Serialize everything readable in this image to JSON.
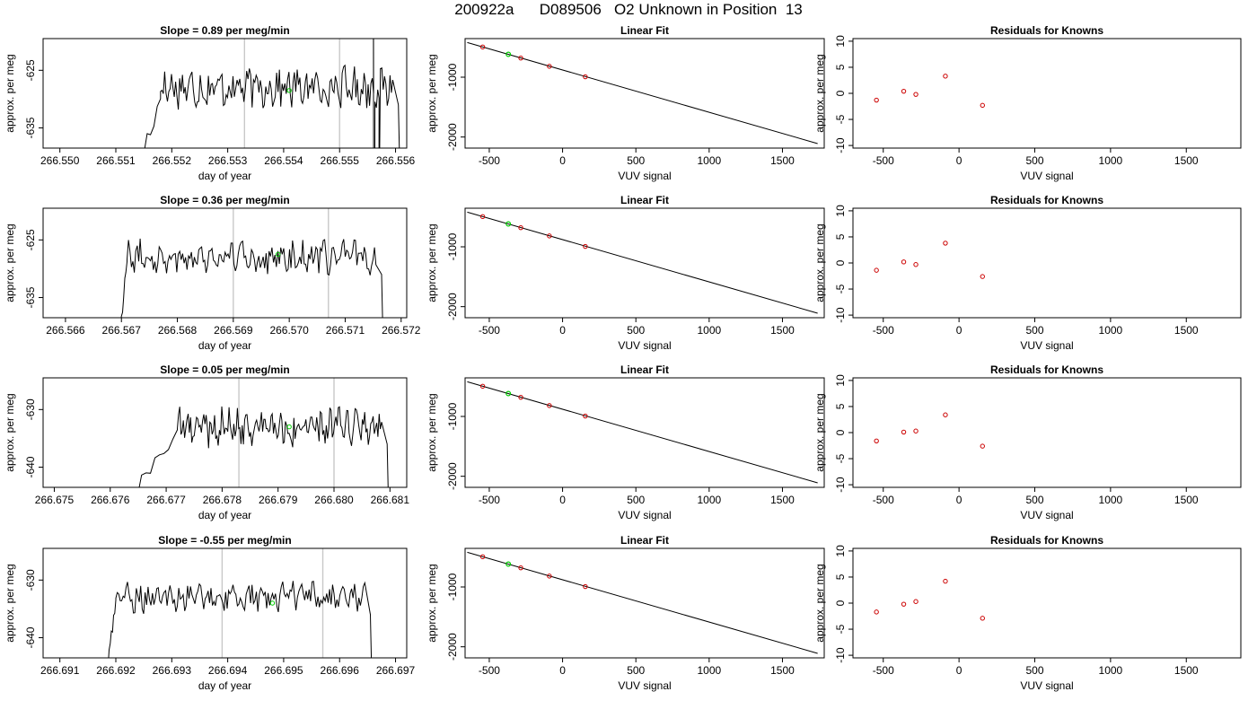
{
  "page_title": "200922a      D089506   O2 Unknown in Position  13",
  "colors": {
    "trace": "#000000",
    "window_line": "#c8c8c8",
    "marker_green": "#00cc00",
    "marker_red": "#cc0000"
  },
  "chart_data": [
    {
      "type": "line",
      "panel": "timeseries",
      "row": 1,
      "title": "Slope =  0.89  per meg/min",
      "xlabel": "day of year",
      "ylabel": "approx. per meg",
      "xlim": [
        266.5497,
        266.5562
      ],
      "ylim": [
        -638.5,
        -619.5
      ],
      "xticks": [
        "266.550",
        "266.551",
        "266.552",
        "266.553",
        "266.554",
        "266.555",
        "266.556"
      ],
      "xtick_values": [
        266.55,
        266.551,
        266.552,
        266.553,
        266.554,
        266.555,
        266.556
      ],
      "yticks": [
        "-635",
        "-625"
      ],
      "ytick_values": [
        -635,
        -625
      ],
      "window_lines": [
        266.5533,
        266.555
      ],
      "trace_start": 266.5514,
      "trace_end": 266.5561,
      "trace_mean": -628,
      "trace_amp": 2.8,
      "trace_rise": [
        266.5512,
        266.5518,
        -660,
        -630
      ],
      "trace_spikes": [
        [
          266.5556,
          -580,
          -700
        ],
        [
          266.5557,
          -700,
          -640
        ]
      ],
      "highlight_point": [
        266.5541,
        -628.5
      ]
    },
    {
      "type": "line",
      "panel": "timeseries",
      "row": 2,
      "title": "Slope =  0.36  per meg/min",
      "xlabel": "day of year",
      "ylabel": "approx. per meg",
      "xlim": [
        266.5656,
        266.5721
      ],
      "ylim": [
        -638.5,
        -619.5
      ],
      "xticks": [
        "266.566",
        "266.567",
        "266.568",
        "266.569",
        "266.570",
        "266.571",
        "266.572"
      ],
      "xtick_values": [
        266.566,
        266.567,
        266.568,
        266.569,
        266.57,
        266.571,
        266.572
      ],
      "yticks": [
        "-635",
        "-625"
      ],
      "ytick_values": [
        -635,
        -625
      ],
      "window_lines": [
        266.569,
        266.5707
      ],
      "trace_start": 266.567,
      "trace_end": 266.5717,
      "trace_mean": -628,
      "trace_amp": 2.2,
      "trace_rise": [
        266.5669,
        266.5671,
        -660,
        -629
      ],
      "trace_spikes": [],
      "highlight_point": [
        266.5698,
        -627.5
      ]
    },
    {
      "type": "line",
      "panel": "timeseries",
      "row": 3,
      "title": "Slope =  0.05  per meg/min",
      "xlabel": "day of year",
      "ylabel": "approx. per meg",
      "xlim": [
        266.6748,
        266.6813
      ],
      "ylim": [
        -643.5,
        -624.5
      ],
      "xticks": [
        "266.675",
        "266.676",
        "266.677",
        "266.678",
        "266.679",
        "266.680",
        "266.681"
      ],
      "xtick_values": [
        266.675,
        266.676,
        266.677,
        266.678,
        266.679,
        266.68,
        266.681
      ],
      "yticks": [
        "-640",
        "-630"
      ],
      "ytick_values": [
        -640,
        -630
      ],
      "window_lines": [
        266.6783,
        266.68
      ],
      "trace_start": 266.6766,
      "trace_end": 266.681,
      "trace_mean": -633,
      "trace_amp": 2.5,
      "trace_rise": [
        266.6764,
        266.6772,
        -650,
        -634
      ],
      "trace_spikes": [],
      "highlight_point": [
        266.6792,
        -633
      ]
    },
    {
      "type": "line",
      "panel": "timeseries",
      "row": 4,
      "title": "Slope =  -0.55  per meg/min",
      "xlabel": "day of year",
      "ylabel": "approx. per meg",
      "xlim": [
        266.6907,
        266.6972
      ],
      "ylim": [
        -643.5,
        -624.5
      ],
      "xticks": [
        "266.691",
        "266.692",
        "266.693",
        "266.694",
        "266.695",
        "266.696",
        "266.697"
      ],
      "xtick_values": [
        266.691,
        266.692,
        266.693,
        266.694,
        266.695,
        266.696,
        266.697
      ],
      "yticks": [
        "-640",
        "-630"
      ],
      "ytick_values": [
        -640,
        -630
      ],
      "window_lines": [
        266.6939,
        266.6957
      ],
      "trace_start": 266.6919,
      "trace_end": 266.6966,
      "trace_mean": -633,
      "trace_amp": 2.0,
      "trace_rise": [
        266.6918,
        266.692,
        -660,
        -634
      ],
      "trace_spikes": [],
      "highlight_point": [
        266.6948,
        -634
      ]
    },
    {
      "type": "scatter",
      "panel": "fit",
      "row": 1,
      "title": "Linear Fit",
      "xlabel": "VUV signal",
      "ylabel": "approx. per meg",
      "xlim": [
        -665,
        1785
      ],
      "ylim": [
        -2185,
        -355
      ],
      "xticks": [
        "-500",
        "0",
        "500",
        "1000",
        "1500"
      ],
      "xtick_values": [
        -500,
        0,
        500,
        1000,
        1500
      ],
      "yticks": [
        "-2000",
        "-1000"
      ],
      "ytick_values": [
        -2000,
        -1000
      ],
      "fit_line": [
        [
          -650,
          -420
        ],
        [
          1740,
          -2110
        ]
      ],
      "points": [
        [
          -545,
          -495
        ],
        [
          -285,
          -680
        ],
        [
          -90,
          -818
        ],
        [
          155,
          -993
        ]
      ],
      "highlight_point": [
        -370,
        -618
      ]
    },
    {
      "type": "scatter",
      "panel": "fit",
      "row": 2,
      "title": "Linear Fit",
      "xlabel": "VUV signal",
      "ylabel": "approx. per meg",
      "xlim": [
        -665,
        1785
      ],
      "ylim": [
        -2185,
        -355
      ],
      "xticks": [
        "-500",
        "0",
        "500",
        "1000",
        "1500"
      ],
      "xtick_values": [
        -500,
        0,
        500,
        1000,
        1500
      ],
      "yticks": [
        "-2000",
        "-1000"
      ],
      "ytick_values": [
        -2000,
        -1000
      ],
      "fit_line": [
        [
          -650,
          -420
        ],
        [
          1740,
          -2110
        ]
      ],
      "points": [
        [
          -545,
          -495
        ],
        [
          -285,
          -680
        ],
        [
          -90,
          -818
        ],
        [
          155,
          -993
        ]
      ],
      "highlight_point": [
        -370,
        -618
      ]
    },
    {
      "type": "scatter",
      "panel": "fit",
      "row": 3,
      "title": "Linear Fit",
      "xlabel": "VUV signal",
      "ylabel": "approx. per meg",
      "xlim": [
        -665,
        1785
      ],
      "ylim": [
        -2185,
        -355
      ],
      "xticks": [
        "-500",
        "0",
        "500",
        "1000",
        "1500"
      ],
      "xtick_values": [
        -500,
        0,
        500,
        1000,
        1500
      ],
      "yticks": [
        "-2000",
        "-1000"
      ],
      "ytick_values": [
        -2000,
        -1000
      ],
      "fit_line": [
        [
          -650,
          -420
        ],
        [
          1740,
          -2110
        ]
      ],
      "points": [
        [
          -545,
          -495
        ],
        [
          -285,
          -680
        ],
        [
          -90,
          -818
        ],
        [
          155,
          -993
        ]
      ],
      "highlight_point": [
        -370,
        -618
      ]
    },
    {
      "type": "scatter",
      "panel": "fit",
      "row": 4,
      "title": "Linear Fit",
      "xlabel": "VUV signal",
      "ylabel": "approx. per meg",
      "xlim": [
        -665,
        1785
      ],
      "ylim": [
        -2185,
        -355
      ],
      "xticks": [
        "-500",
        "0",
        "500",
        "1000",
        "1500"
      ],
      "xtick_values": [
        -500,
        0,
        500,
        1000,
        1500
      ],
      "yticks": [
        "-2000",
        "-1000"
      ],
      "ytick_values": [
        -2000,
        -1000
      ],
      "fit_line": [
        [
          -650,
          -420
        ],
        [
          1740,
          -2110
        ]
      ],
      "points": [
        [
          -545,
          -495
        ],
        [
          -285,
          -680
        ],
        [
          -90,
          -818
        ],
        [
          155,
          -993
        ]
      ],
      "highlight_point": [
        -370,
        -618
      ]
    },
    {
      "type": "scatter",
      "panel": "residuals",
      "row": 1,
      "title": "Residuals for Knowns",
      "xlabel": "VUV signal",
      "ylabel": "approx. per meg",
      "xlim": [
        -700,
        1860
      ],
      "ylim": [
        -10.5,
        10.5
      ],
      "xticks": [
        "-500",
        "0",
        "500",
        "1000",
        "1500"
      ],
      "xtick_values": [
        -500,
        0,
        500,
        1000,
        1500
      ],
      "yticks": [
        "-10",
        "-5",
        "0",
        "5",
        "10"
      ],
      "ytick_values": [
        -10,
        -5,
        0,
        5,
        10
      ],
      "points": [
        [
          -545,
          -1.3
        ],
        [
          -365,
          0.4
        ],
        [
          -285,
          -0.2
        ],
        [
          -90,
          3.3
        ],
        [
          155,
          -2.3
        ]
      ]
    },
    {
      "type": "scatter",
      "panel": "residuals",
      "row": 2,
      "title": "Residuals for Knowns",
      "xlabel": "VUV signal",
      "ylabel": "approx. per meg",
      "xlim": [
        -700,
        1860
      ],
      "ylim": [
        -10.5,
        10.5
      ],
      "xticks": [
        "-500",
        "0",
        "500",
        "1000",
        "1500"
      ],
      "xtick_values": [
        -500,
        0,
        500,
        1000,
        1500
      ],
      "yticks": [
        "-10",
        "-5",
        "0",
        "5",
        "10"
      ],
      "ytick_values": [
        -10,
        -5,
        0,
        5,
        10
      ],
      "points": [
        [
          -545,
          -1.4
        ],
        [
          -365,
          0.2
        ],
        [
          -285,
          -0.3
        ],
        [
          -90,
          3.8
        ],
        [
          155,
          -2.6
        ]
      ]
    },
    {
      "type": "scatter",
      "panel": "residuals",
      "row": 3,
      "title": "Residuals for Knowns",
      "xlabel": "VUV signal",
      "ylabel": "approx. per meg",
      "xlim": [
        -700,
        1860
      ],
      "ylim": [
        -10.5,
        10.5
      ],
      "xticks": [
        "-500",
        "0",
        "500",
        "1000",
        "1500"
      ],
      "xtick_values": [
        -500,
        0,
        500,
        1000,
        1500
      ],
      "yticks": [
        "-10",
        "-5",
        "0",
        "5",
        "10"
      ],
      "ytick_values": [
        -10,
        -5,
        0,
        5,
        10
      ],
      "points": [
        [
          -545,
          -1.6
        ],
        [
          -365,
          0.1
        ],
        [
          -285,
          0.3
        ],
        [
          -90,
          3.4
        ],
        [
          155,
          -2.6
        ]
      ]
    },
    {
      "type": "scatter",
      "panel": "residuals",
      "row": 4,
      "title": "Residuals for Knowns",
      "xlabel": "VUV signal",
      "ylabel": "approx. per meg",
      "xlim": [
        -700,
        1860
      ],
      "ylim": [
        -10.5,
        10.5
      ],
      "xticks": [
        "-500",
        "0",
        "500",
        "1000",
        "1500"
      ],
      "xtick_values": [
        -500,
        0,
        500,
        1000,
        1500
      ],
      "yticks": [
        "-10",
        "-5",
        "0",
        "5",
        "10"
      ],
      "ytick_values": [
        -10,
        -5,
        0,
        5,
        10
      ],
      "points": [
        [
          -545,
          -1.7
        ],
        [
          -365,
          -0.2
        ],
        [
          -285,
          0.3
        ],
        [
          -90,
          4.2
        ],
        [
          155,
          -2.9
        ]
      ]
    }
  ]
}
